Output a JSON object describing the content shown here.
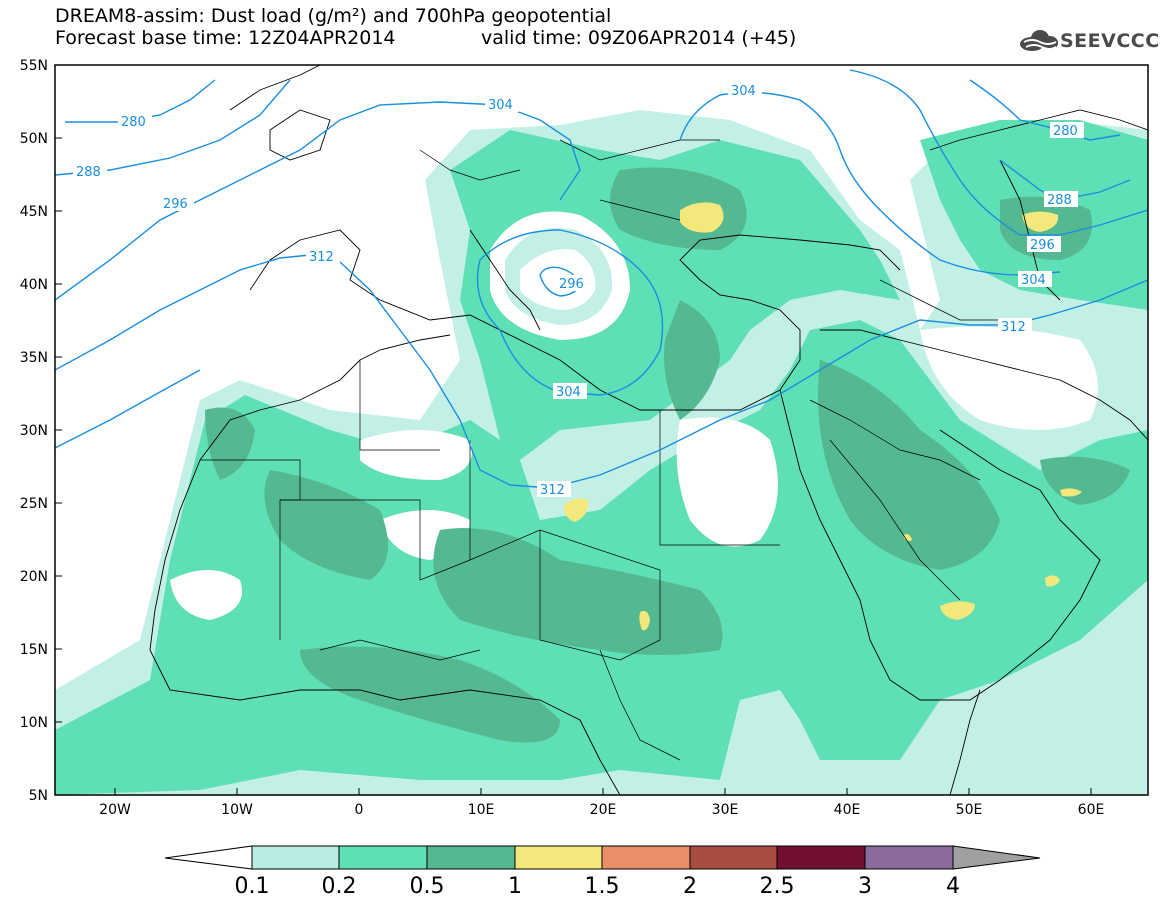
{
  "header": {
    "title_line1": "DREAM8-assim: Dust load (g/m²) and 700hPa geopotential",
    "title_line2": "Forecast base time: 12Z04APR2014",
    "valid_time": "valid time: 09Z06APR2014 (+45)",
    "logo_text": "SEEVCCC"
  },
  "axes": {
    "lat_labels": [
      "55N",
      "50N",
      "45N",
      "40N",
      "35N",
      "30N",
      "25N",
      "20N",
      "15N",
      "10N",
      "5N"
    ],
    "lon_labels": [
      "20W",
      "10W",
      "0",
      "10E",
      "20E",
      "30E",
      "40E",
      "50E",
      "60E"
    ]
  },
  "contour_labels": [
    "280",
    "288",
    "296",
    "304",
    "312",
    "304",
    "312",
    "296",
    "304",
    "280",
    "288",
    "296",
    "304",
    "312"
  ],
  "colorbar": {
    "labels": [
      "0.1",
      "0.2",
      "0.5",
      "1",
      "1.5",
      "2",
      "2.5",
      "3",
      "4"
    ],
    "colors": [
      "#ffffff",
      "#b6ece2",
      "#5fdfb6",
      "#54b890",
      "#f2e87c",
      "#e98f68",
      "#a84c3f",
      "#74102f",
      "#8b6a9e",
      "#a0a0a0"
    ]
  },
  "colors": {
    "contour": "#1a8fe0",
    "dust_low": "#c3f0e6",
    "dust_mid": "#5fdfb6",
    "dust_high": "#54b890",
    "dust_peak": "#f2e87c"
  }
}
